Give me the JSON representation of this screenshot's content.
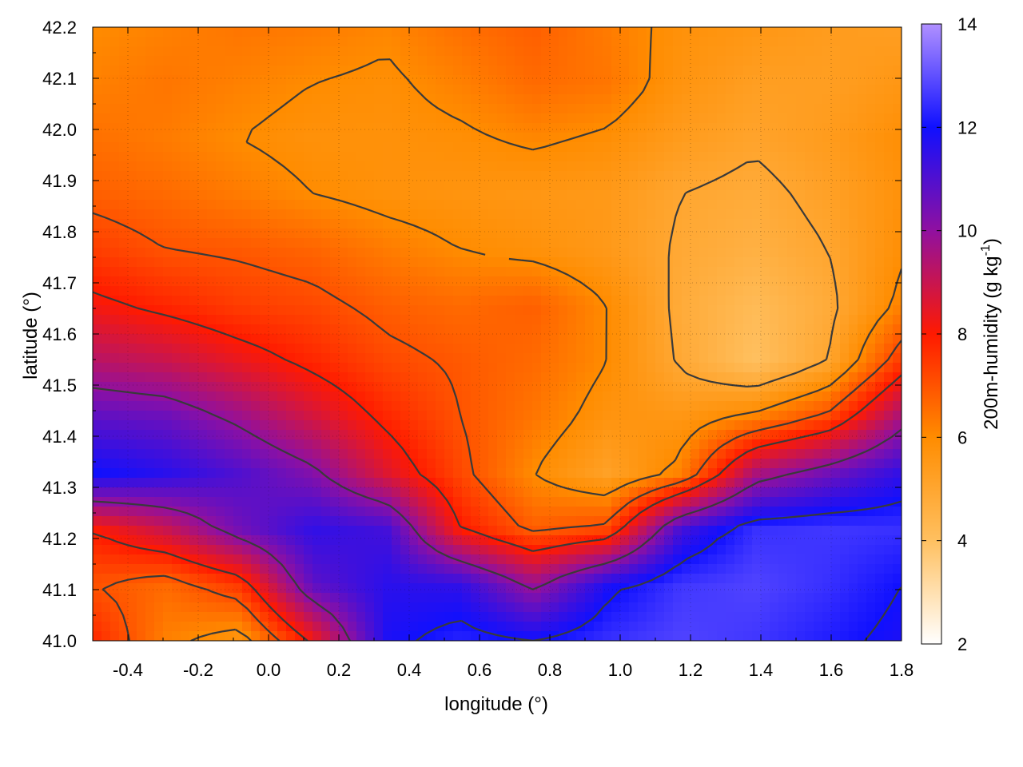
{
  "chart_data": {
    "type": "heatmap",
    "title": "",
    "xlabel": "longitude (°)",
    "ylabel": "latitude (°)",
    "colorbar_label": "200m-humidity (g kg",
    "colorbar_label_exp": "-1",
    "colorbar_label_end": ")",
    "xlim": [
      -0.5,
      1.8
    ],
    "ylim": [
      41.0,
      42.2
    ],
    "zlim": [
      2,
      14
    ],
    "x_ticks": [
      "-0.4",
      "-0.2",
      "0.0",
      "0.2",
      "0.4",
      "0.6",
      "0.8",
      "1.0",
      "1.2",
      "1.4",
      "1.6",
      "1.8"
    ],
    "x_tick_values": [
      -0.4,
      -0.2,
      0.0,
      0.2,
      0.4,
      0.6,
      0.8,
      1.0,
      1.2,
      1.4,
      1.6,
      1.8
    ],
    "y_ticks": [
      "41.0",
      "41.1",
      "41.2",
      "41.3",
      "41.4",
      "41.5",
      "41.6",
      "41.7",
      "41.8",
      "41.9",
      "42.0",
      "42.1",
      "42.2"
    ],
    "y_tick_values": [
      41.0,
      41.1,
      41.2,
      41.3,
      41.4,
      41.5,
      41.6,
      41.7,
      41.8,
      41.9,
      42.0,
      42.1,
      42.2
    ],
    "colorbar_ticks": [
      "2",
      "4",
      "6",
      "8",
      "10",
      "12",
      "14"
    ],
    "colorbar_tick_values": [
      2,
      4,
      6,
      8,
      10,
      12,
      14
    ],
    "colormap": [
      {
        "value": 2,
        "color": "#ffffff"
      },
      {
        "value": 4,
        "color": "#ffc060"
      },
      {
        "value": 6,
        "color": "#ff8c00"
      },
      {
        "value": 8,
        "color": "#ff1a00"
      },
      {
        "value": 10,
        "color": "#9010a0"
      },
      {
        "value": 12,
        "color": "#1010ff"
      },
      {
        "value": 14,
        "color": "#b090ff"
      }
    ],
    "grid": true,
    "contours": true,
    "humidity_field": {
      "rows_top_to_bottom": [
        [
          6,
          6.2,
          6.4,
          6.3,
          6.1,
          6.5,
          6.8,
          6.3,
          5.8,
          5.6,
          5.4,
          5.3
        ],
        [
          6.2,
          6.4,
          6.2,
          6.0,
          5.9,
          6.2,
          6.6,
          6.4,
          5.7,
          5.3,
          5.3,
          5.6
        ],
        [
          6.5,
          6.3,
          6.0,
          5.8,
          5.8,
          5.9,
          6.1,
          5.9,
          5.4,
          5.1,
          5.4,
          5.9
        ],
        [
          6.8,
          6.6,
          6.3,
          6.0,
          5.8,
          5.7,
          5.6,
          5.5,
          5.0,
          4.8,
          5.2,
          5.8
        ],
        [
          7.4,
          7.0,
          6.9,
          6.7,
          6.3,
          6.0,
          5.8,
          5.5,
          4.9,
          4.6,
          5.0,
          5.9
        ],
        [
          8.2,
          7.8,
          7.4,
          7.2,
          6.8,
          6.6,
          6.8,
          6.0,
          4.8,
          4.2,
          4.8,
          6.2
        ],
        [
          9.3,
          9.0,
          8.4,
          7.8,
          7.2,
          6.9,
          6.6,
          6.0,
          4.9,
          4.0,
          5.0,
          7.5
        ],
        [
          10.8,
          10.6,
          9.8,
          8.8,
          7.8,
          7.0,
          6.4,
          5.7,
          5.6,
          6.2,
          7.2,
          9.6
        ],
        [
          12.0,
          11.6,
          11.0,
          10.2,
          8.6,
          7.2,
          6.0,
          5.2,
          6.2,
          9.5,
          10.5,
          11.5
        ],
        [
          8.0,
          9.0,
          10.5,
          11.5,
          11.2,
          8.0,
          6.8,
          7.2,
          11.2,
          12.5,
          12.6,
          12.5
        ],
        [
          7.0,
          6.6,
          7.5,
          10.8,
          11.6,
          11.5,
          9.8,
          11.8,
          12.6,
          12.8,
          12.5,
          12.0
        ],
        [
          7.8,
          6.2,
          5.6,
          8.2,
          11.8,
          12.3,
          12.0,
          12.5,
          12.8,
          12.6,
          12.2,
          11.8
        ]
      ]
    }
  }
}
